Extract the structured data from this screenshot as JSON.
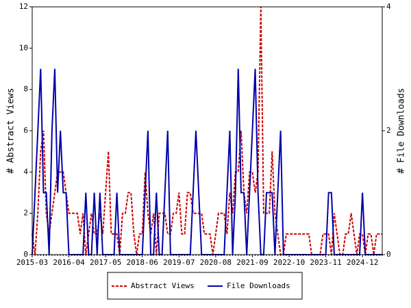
{
  "chart_data": {
    "type": "line",
    "categories": [
      "2015-03",
      null,
      null,
      null,
      null,
      null,
      null,
      null,
      null,
      null,
      null,
      null,
      null,
      "2016-04",
      null,
      null,
      null,
      null,
      null,
      null,
      null,
      null,
      null,
      null,
      null,
      null,
      "2017-05",
      null,
      null,
      null,
      null,
      null,
      null,
      null,
      null,
      null,
      null,
      null,
      null,
      "2018-06",
      null,
      null,
      null,
      null,
      null,
      null,
      null,
      null,
      null,
      null,
      null,
      null,
      "2019-07",
      null,
      null,
      null,
      null,
      null,
      null,
      null,
      null,
      null,
      null,
      null,
      null,
      "2020-08",
      null,
      null,
      null,
      null,
      null,
      null,
      null,
      null,
      null,
      null,
      null,
      null,
      "2021-09",
      null,
      null,
      null,
      null,
      null,
      null,
      null,
      null,
      null,
      null,
      null,
      null,
      "2022-10",
      null,
      null,
      null,
      null,
      null,
      null,
      null,
      null,
      null,
      null,
      null,
      null,
      "2023-11",
      null,
      null,
      null,
      null,
      null,
      null,
      null,
      null,
      null,
      null,
      null,
      null,
      "2024-12",
      null,
      null,
      null,
      null,
      null,
      null,
      null
    ],
    "series": [
      {
        "name": "Abstract Views",
        "color": "#cc0000",
        "dash": true,
        "values": [
          1,
          0,
          2,
          5,
          6,
          2,
          1,
          2,
          3,
          4,
          4,
          4,
          3,
          2,
          2,
          2,
          2,
          1,
          2,
          0,
          1,
          2,
          1,
          1,
          2,
          1,
          3,
          5,
          1,
          1,
          1,
          0,
          2,
          2,
          3,
          3,
          1,
          0,
          1,
          1,
          4,
          2,
          1,
          2,
          0,
          2,
          2,
          2,
          1,
          1,
          2,
          2,
          3,
          1,
          1,
          3,
          3,
          2,
          2,
          2,
          2,
          1,
          1,
          1,
          0,
          1,
          2,
          2,
          2,
          1,
          3,
          2,
          4,
          4,
          6,
          3,
          2,
          4,
          4,
          3,
          4,
          12,
          2,
          2,
          2,
          5,
          2,
          1,
          0,
          0,
          1,
          1,
          1,
          1,
          1,
          1,
          1,
          1,
          1,
          0,
          0,
          0,
          0,
          1,
          1,
          1,
          0,
          2,
          1,
          0,
          0,
          1,
          1,
          2,
          1,
          0,
          1,
          1,
          0,
          1,
          1,
          0,
          1,
          1,
          1
        ]
      },
      {
        "name": "File Downloads",
        "color": "#0000aa",
        "dash": false,
        "axis": "y2",
        "values": [
          0,
          1,
          2,
          3,
          1,
          1,
          0,
          2,
          3,
          1,
          2,
          1,
          1,
          0,
          0,
          0,
          0,
          0,
          0,
          1,
          0,
          0,
          1,
          0,
          1,
          0,
          0,
          0,
          0,
          0,
          1,
          0,
          0,
          0,
          0,
          0,
          0,
          0,
          0,
          0,
          1,
          2,
          0,
          0,
          1,
          0,
          0,
          1,
          2,
          0,
          0,
          0,
          0,
          0,
          0,
          0,
          0,
          1,
          2,
          1,
          0,
          0,
          0,
          0,
          0,
          0,
          0,
          0,
          0,
          1,
          2,
          0,
          1,
          3,
          1,
          1,
          0,
          1,
          2,
          3,
          1,
          0,
          0,
          1,
          1,
          1,
          0,
          1,
          2,
          0,
          0,
          0,
          0,
          0,
          0,
          0,
          0,
          0,
          0,
          0,
          0,
          0,
          0,
          0,
          0,
          1,
          1,
          0,
          0,
          0,
          0,
          0,
          0,
          0,
          0,
          0,
          0,
          1,
          0,
          0,
          0,
          0,
          0,
          0,
          0
        ]
      }
    ],
    "y_label": "# Abstract Views",
    "y2_label": "# File Downloads",
    "ylim": [
      0,
      12
    ],
    "yticks": [
      0,
      2,
      4,
      6,
      8,
      10,
      12
    ],
    "y2lim": [
      0,
      4
    ],
    "y2ticks": [
      0,
      2,
      4
    ],
    "legend": "bottom"
  }
}
